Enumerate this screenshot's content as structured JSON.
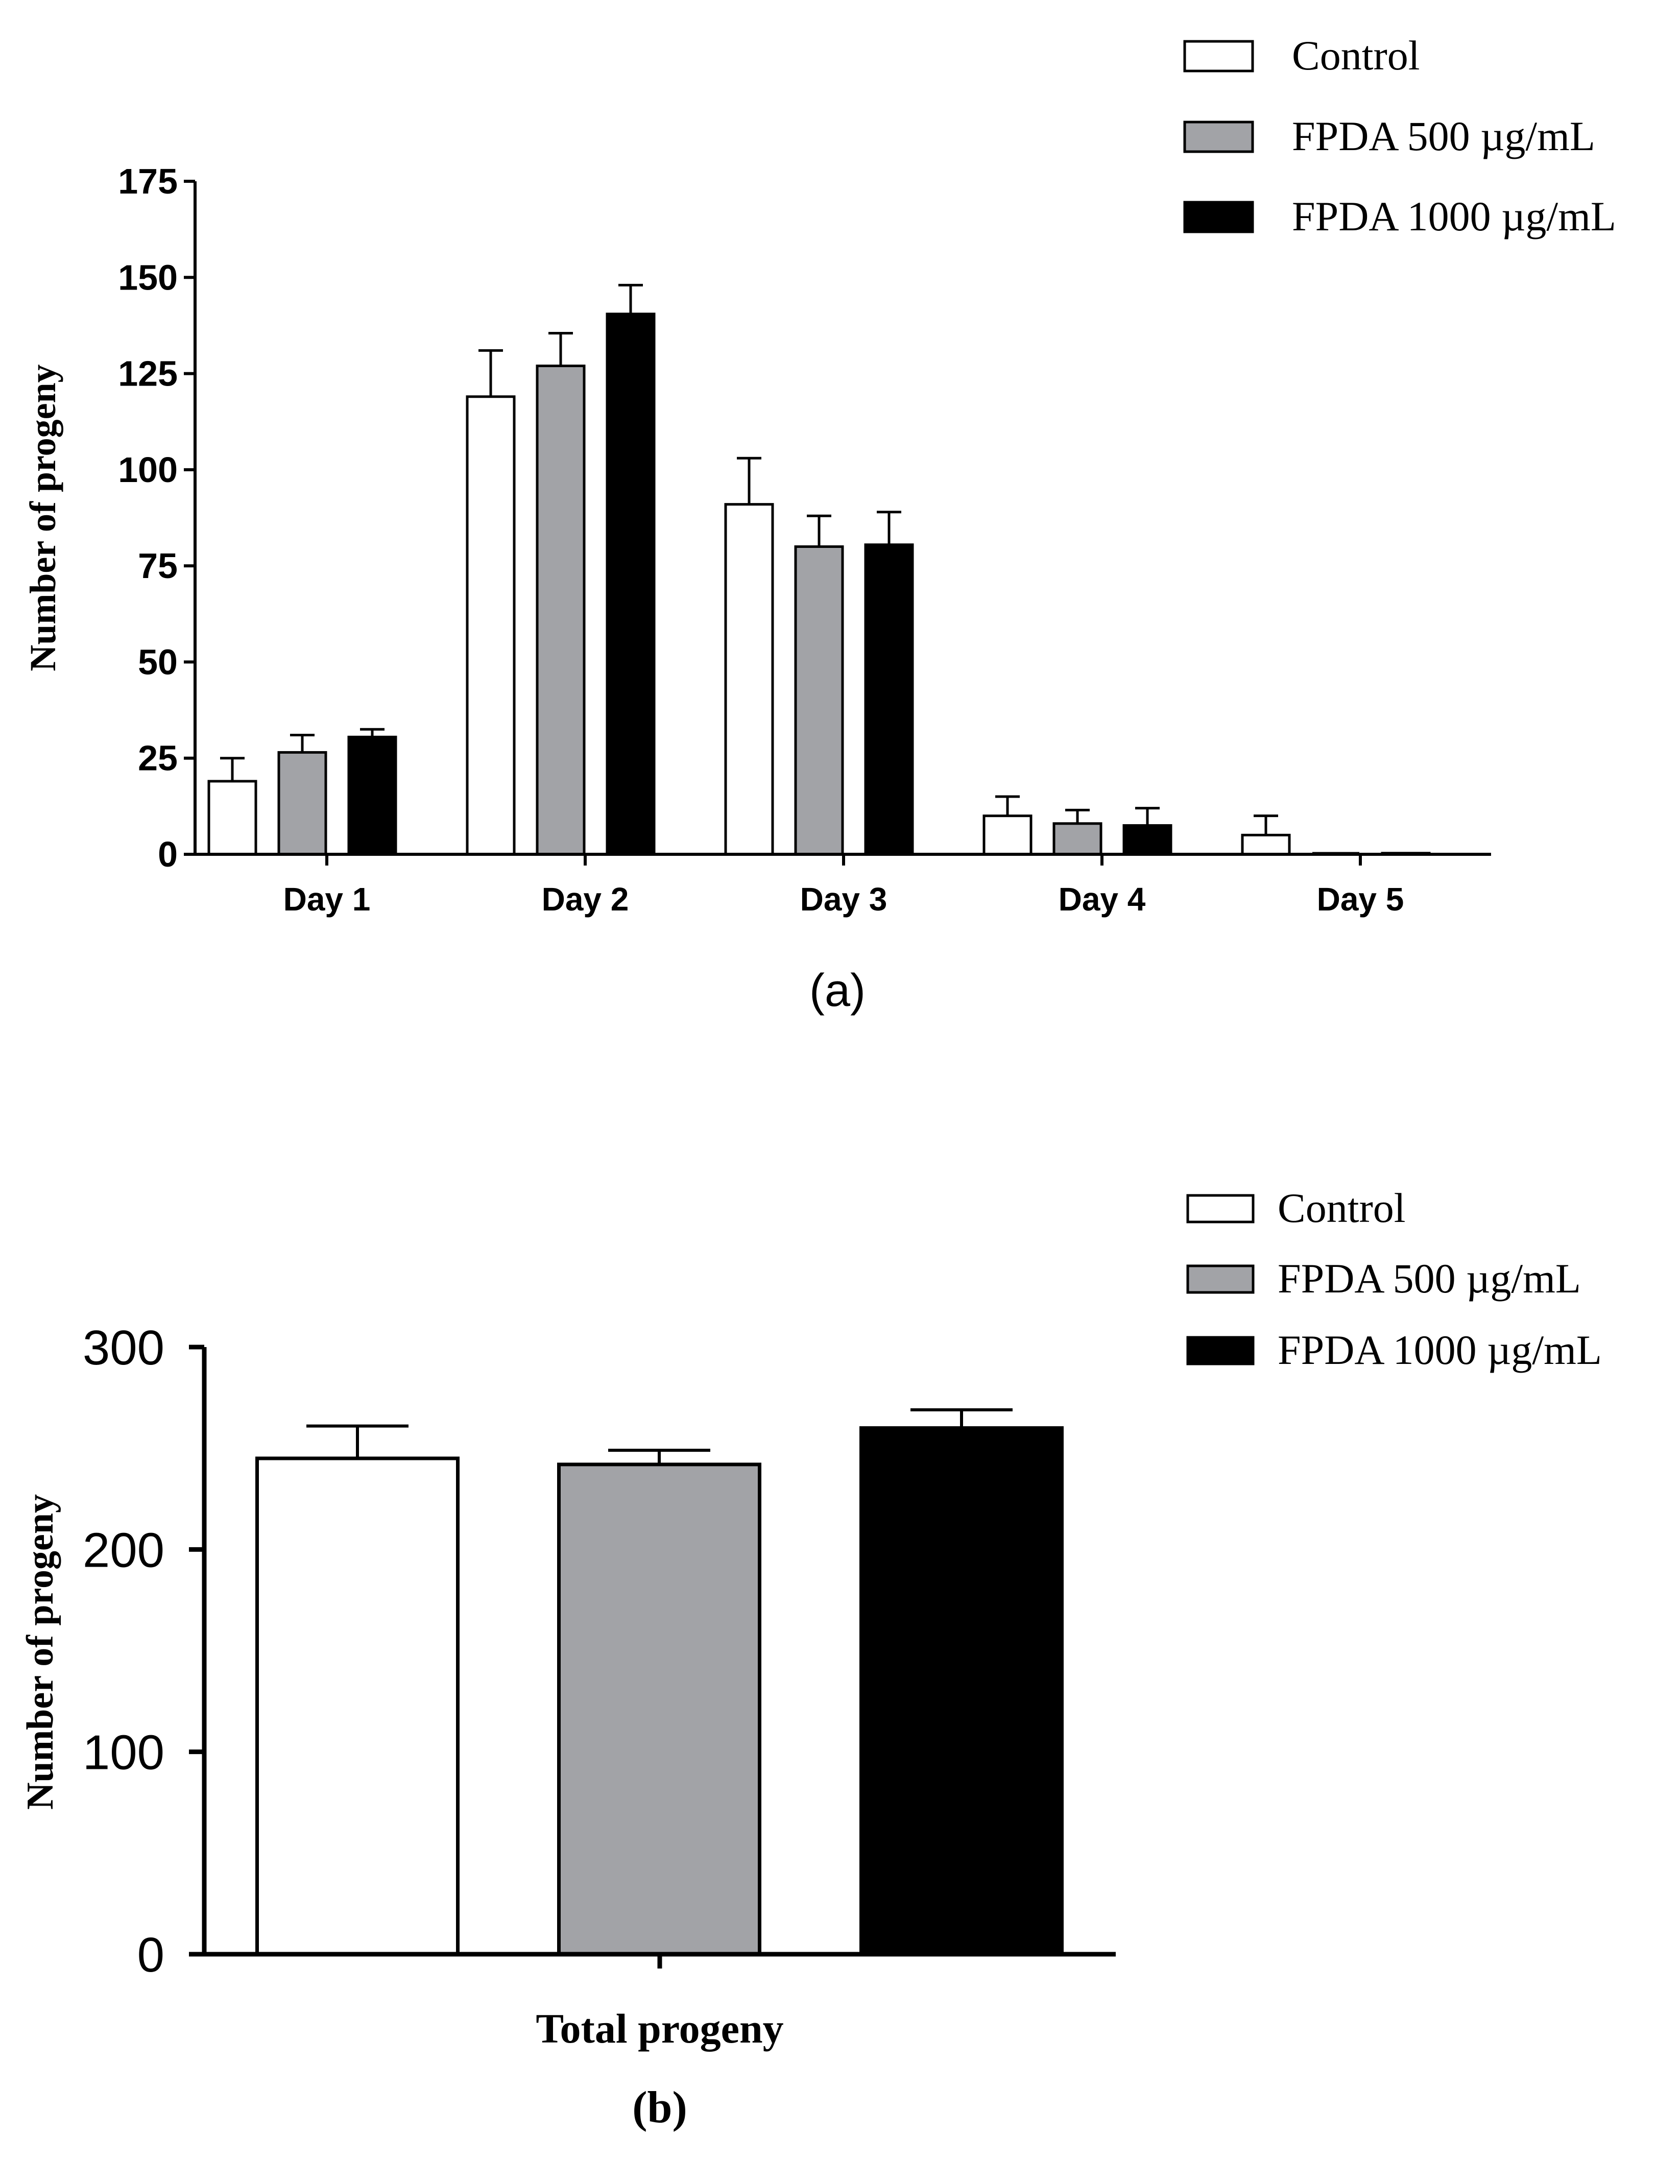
{
  "colors": {
    "control": "#ffffff",
    "fpda500": "#a2a3a7",
    "fpda1000": "#000000",
    "axis": "#000000"
  },
  "chart_data": [
    {
      "id": "a",
      "panel_label": "(a)",
      "type": "bar",
      "ylabel": "Number of progeny",
      "xlabel": "",
      "ylim": [
        0,
        175
      ],
      "yticks": [
        0,
        25,
        50,
        75,
        100,
        125,
        150,
        175
      ],
      "categories": [
        "Day 1",
        "Day 2",
        "Day 3",
        "Day 4",
        "Day 5"
      ],
      "legend_position": "top-right",
      "series": [
        {
          "name": "Control",
          "color_key": "control",
          "values": [
            19,
            119,
            91,
            10,
            5
          ],
          "errors": [
            6,
            12,
            12,
            5,
            5
          ]
        },
        {
          "name": "FPDA 500 µg/mL",
          "color_key": "fpda500",
          "values": [
            26.5,
            127,
            80,
            8,
            0
          ],
          "errors": [
            4.5,
            8.5,
            8,
            3.5,
            0
          ]
        },
        {
          "name": "FPDA 1000 µg/mL",
          "color_key": "fpda1000",
          "values": [
            30.5,
            140.5,
            80.5,
            7.5,
            0.3
          ],
          "errors": [
            2,
            7.5,
            8.5,
            4.5,
            0
          ]
        }
      ]
    },
    {
      "id": "b",
      "panel_label": "(b)",
      "type": "bar",
      "ylabel": "Number of progeny",
      "xlabel": "Total progeny",
      "ylim": [
        0,
        300
      ],
      "yticks": [
        0,
        100,
        200,
        300
      ],
      "categories": [
        "Total progeny"
      ],
      "legend_position": "top-right",
      "series": [
        {
          "name": "Control",
          "color_key": "control",
          "values": [
            245
          ],
          "errors": [
            16
          ]
        },
        {
          "name": "FPDA 500 µg/mL",
          "color_key": "fpda500",
          "values": [
            242
          ],
          "errors": [
            7
          ]
        },
        {
          "name": "FPDA 1000 µg/mL",
          "color_key": "fpda1000",
          "values": [
            260
          ],
          "errors": [
            9
          ]
        }
      ]
    }
  ]
}
